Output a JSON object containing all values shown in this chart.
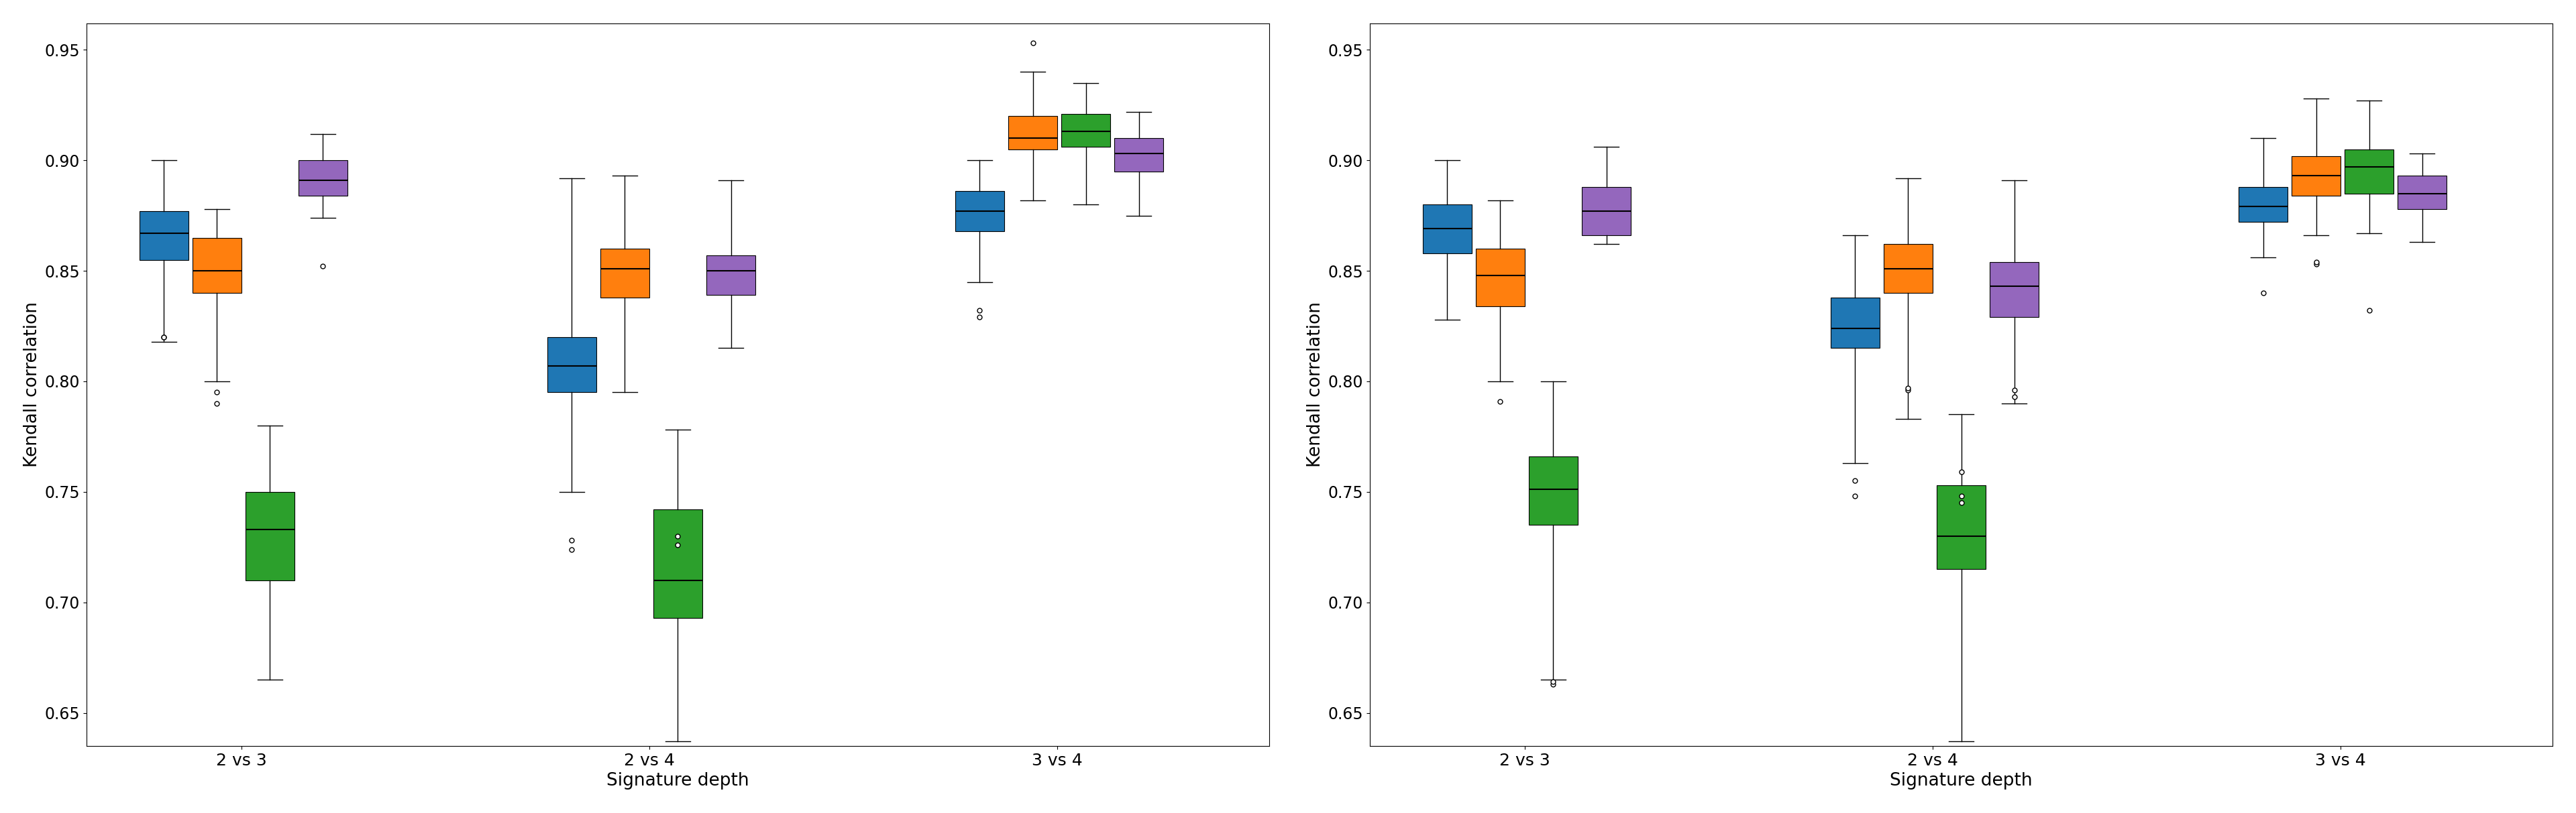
{
  "xlabel": "Signature depth",
  "ylabel": "Kendall correlation",
  "ylim": [
    0.635,
    0.962
  ],
  "yticks": [
    0.65,
    0.7,
    0.75,
    0.8,
    0.85,
    0.9,
    0.95
  ],
  "groups": [
    "2 vs 3",
    "2 vs 4",
    "3 vs 4"
  ],
  "group_positions": [
    1.0,
    2.0,
    3.0
  ],
  "colors": [
    "#1f77b4",
    "#ff7f0e",
    "#2ca02c",
    "#9467bd"
  ],
  "box_width": 0.12,
  "series_offsets": [
    -0.19,
    -0.06,
    0.07,
    0.2
  ],
  "left": {
    "2 vs 3": {
      "blue": {
        "q1": 0.855,
        "median": 0.867,
        "q3": 0.877,
        "whislo": 0.818,
        "whishi": 0.9,
        "fliers": [
          0.82,
          0.82
        ]
      },
      "orange": {
        "q1": 0.84,
        "median": 0.85,
        "q3": 0.865,
        "whislo": 0.8,
        "whishi": 0.878,
        "fliers": [
          0.79,
          0.795
        ]
      },
      "green": {
        "q1": 0.71,
        "median": 0.733,
        "q3": 0.75,
        "whislo": 0.665,
        "whishi": 0.78,
        "fliers": []
      },
      "purple": {
        "q1": 0.884,
        "median": 0.891,
        "q3": 0.9,
        "whislo": 0.874,
        "whishi": 0.912,
        "fliers": [
          0.852
        ]
      }
    },
    "2 vs 4": {
      "blue": {
        "q1": 0.795,
        "median": 0.807,
        "q3": 0.82,
        "whislo": 0.75,
        "whishi": 0.892,
        "fliers": [
          0.724,
          0.728
        ]
      },
      "orange": {
        "q1": 0.838,
        "median": 0.851,
        "q3": 0.86,
        "whislo": 0.795,
        "whishi": 0.893,
        "fliers": []
      },
      "green": {
        "q1": 0.693,
        "median": 0.71,
        "q3": 0.742,
        "whislo": 0.637,
        "whishi": 0.778,
        "fliers": [
          0.726,
          0.73
        ]
      },
      "purple": {
        "q1": 0.839,
        "median": 0.85,
        "q3": 0.857,
        "whislo": 0.815,
        "whishi": 0.891,
        "fliers": []
      }
    },
    "3 vs 4": {
      "blue": {
        "q1": 0.868,
        "median": 0.877,
        "q3": 0.886,
        "whislo": 0.845,
        "whishi": 0.9,
        "fliers": [
          0.829,
          0.832
        ]
      },
      "orange": {
        "q1": 0.905,
        "median": 0.91,
        "q3": 0.92,
        "whislo": 0.882,
        "whishi": 0.94,
        "fliers": [
          0.953
        ]
      },
      "green": {
        "q1": 0.906,
        "median": 0.913,
        "q3": 0.921,
        "whislo": 0.88,
        "whishi": 0.935,
        "fliers": []
      },
      "purple": {
        "q1": 0.895,
        "median": 0.903,
        "q3": 0.91,
        "whislo": 0.875,
        "whishi": 0.922,
        "fliers": []
      }
    }
  },
  "right": {
    "2 vs 3": {
      "blue": {
        "q1": 0.858,
        "median": 0.869,
        "q3": 0.88,
        "whislo": 0.828,
        "whishi": 0.9,
        "fliers": []
      },
      "orange": {
        "q1": 0.834,
        "median": 0.848,
        "q3": 0.86,
        "whislo": 0.8,
        "whishi": 0.882,
        "fliers": [
          0.791
        ]
      },
      "green": {
        "q1": 0.735,
        "median": 0.751,
        "q3": 0.766,
        "whislo": 0.665,
        "whishi": 0.8,
        "fliers": [
          0.663,
          0.664
        ]
      },
      "purple": {
        "q1": 0.866,
        "median": 0.877,
        "q3": 0.888,
        "whislo": 0.862,
        "whishi": 0.906,
        "fliers": []
      }
    },
    "2 vs 4": {
      "blue": {
        "q1": 0.815,
        "median": 0.824,
        "q3": 0.838,
        "whislo": 0.763,
        "whishi": 0.866,
        "fliers": [
          0.755,
          0.748
        ]
      },
      "orange": {
        "q1": 0.84,
        "median": 0.851,
        "q3": 0.862,
        "whislo": 0.783,
        "whishi": 0.892,
        "fliers": [
          0.796,
          0.797
        ]
      },
      "green": {
        "q1": 0.715,
        "median": 0.73,
        "q3": 0.753,
        "whislo": 0.637,
        "whishi": 0.785,
        "fliers": [
          0.759,
          0.748,
          0.745
        ]
      },
      "purple": {
        "q1": 0.829,
        "median": 0.843,
        "q3": 0.854,
        "whislo": 0.79,
        "whishi": 0.891,
        "fliers": [
          0.796,
          0.793
        ]
      }
    },
    "3 vs 4": {
      "blue": {
        "q1": 0.872,
        "median": 0.879,
        "q3": 0.888,
        "whislo": 0.856,
        "whishi": 0.91,
        "fliers": [
          0.84
        ]
      },
      "orange": {
        "q1": 0.884,
        "median": 0.893,
        "q3": 0.902,
        "whislo": 0.866,
        "whishi": 0.928,
        "fliers": [
          0.853,
          0.854
        ]
      },
      "green": {
        "q1": 0.885,
        "median": 0.897,
        "q3": 0.905,
        "whislo": 0.867,
        "whishi": 0.927,
        "fliers": [
          0.832
        ]
      },
      "purple": {
        "q1": 0.878,
        "median": 0.885,
        "q3": 0.893,
        "whislo": 0.863,
        "whishi": 0.903,
        "fliers": []
      }
    }
  }
}
